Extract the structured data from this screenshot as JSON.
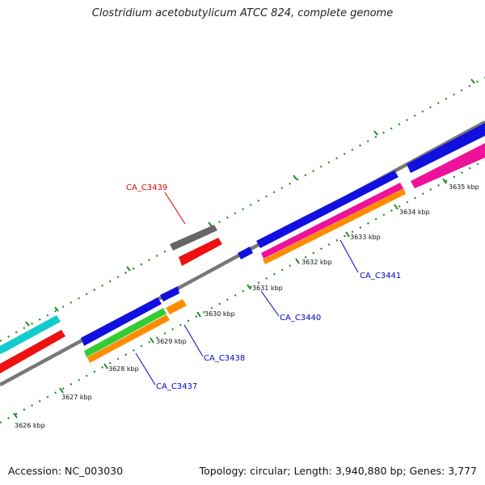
{
  "title": "Clostridium acetobutylicum ATCC 824, complete genome",
  "footer": {
    "accession": "Accession: NC_003030",
    "summary": "Topology: circular; Length: 3,940,880 bp; Genes: 3,777"
  },
  "scale": {
    "tick_labels": [
      "3626 kbp",
      "3627 kbp",
      "3628 kbp",
      "3629 kbp",
      "3630 kbp",
      "3631 kbp",
      "3632 kbp",
      "3633 kbp",
      "3634 kbp",
      "3635 kbp"
    ]
  },
  "gene_labels": [
    {
      "name": "CA_C3439",
      "color": "#dd0000"
    },
    {
      "name": "CA_C3441",
      "color": "#0000cc"
    },
    {
      "name": "CA_C3440",
      "color": "#0000cc"
    },
    {
      "name": "CA_C3438",
      "color": "#0000cc"
    },
    {
      "name": "CA_C3437",
      "color": "#0000cc"
    }
  ],
  "colors": {
    "backbone": "#888888",
    "ticks": "#228b22",
    "blue": "#1010e0",
    "red": "#ee1111",
    "gray": "#666666",
    "orange": "#ff8c00",
    "magenta": "#ee1199",
    "cyan": "#11cccc",
    "green": "#33cc33"
  }
}
